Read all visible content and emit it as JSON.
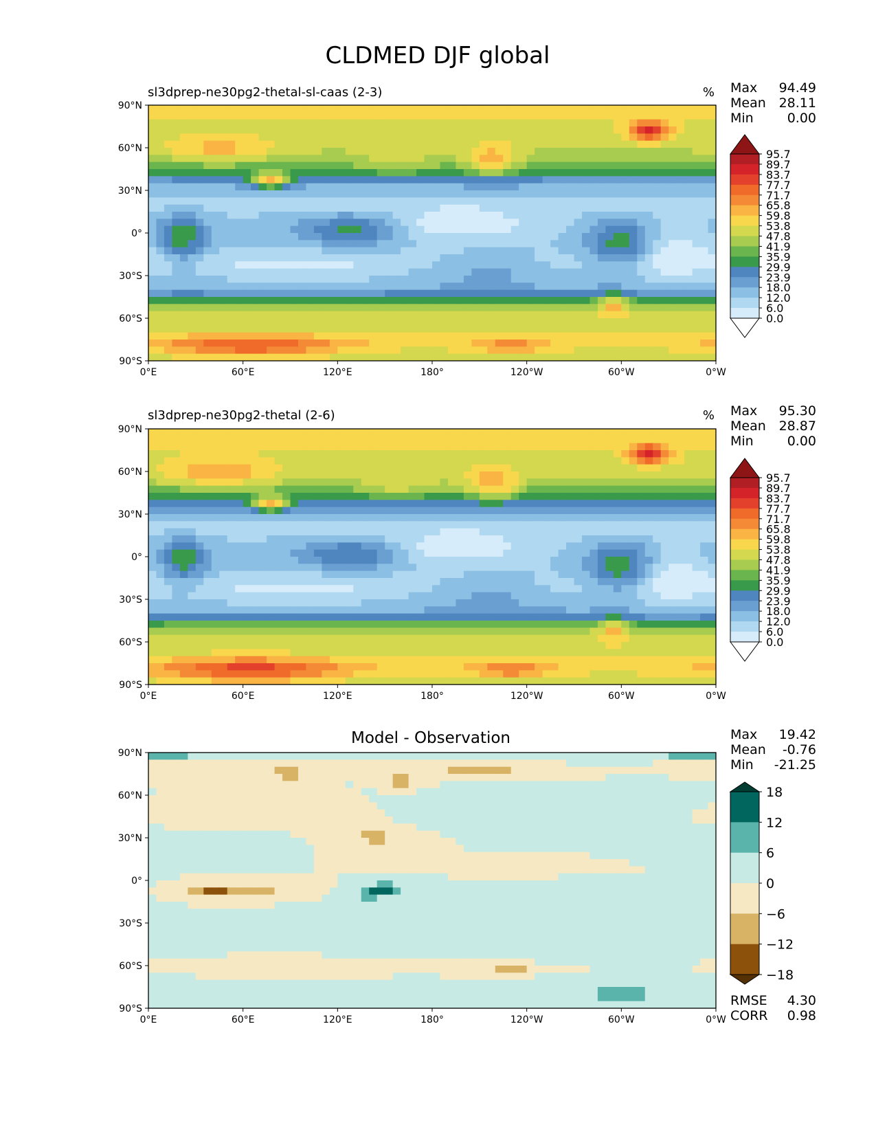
{
  "title": "CLDMED DJF global",
  "panels": [
    {
      "id": "test",
      "subtitle": "sl3dprep-ne30pg2-thetal-sl-caas (2-3)",
      "units": "%",
      "stats": [
        {
          "label": "Max",
          "value": "94.49"
        },
        {
          "label": "Mean",
          "value": "28.11"
        },
        {
          "label": "Min",
          "value": "0.00"
        }
      ],
      "colorbar": "full"
    },
    {
      "id": "ref",
      "subtitle": "sl3dprep-ne30pg2-thetal (2-6)",
      "units": "%",
      "stats": [
        {
          "label": "Max",
          "value": "95.30"
        },
        {
          "label": "Mean",
          "value": "28.87"
        },
        {
          "label": "Min",
          "value": "0.00"
        }
      ],
      "colorbar": "full"
    },
    {
      "id": "diff",
      "center_title": "Model - Observation",
      "stats": [
        {
          "label": "Max",
          "value": "19.42"
        },
        {
          "label": "Mean",
          "value": "-0.76"
        },
        {
          "label": "Min",
          "value": "-21.25"
        }
      ],
      "bottom_stats": [
        {
          "label": "RMSE",
          "value": "4.30"
        },
        {
          "label": "CORR",
          "value": "0.98"
        }
      ],
      "colorbar": "diff"
    }
  ],
  "chart_data": {
    "type": "heatmap",
    "projection": "cylindrical lon-lat",
    "x_ticks": [
      "0°E",
      "60°E",
      "120°E",
      "180°",
      "120°W",
      "60°W",
      "0°W"
    ],
    "y_ticks": [
      "90°N",
      "60°N",
      "30°N",
      "0°",
      "30°S",
      "60°S",
      "90°S"
    ],
    "xlim": [
      0,
      360
    ],
    "ylim": [
      -90,
      90
    ],
    "colorbars": {
      "full": {
        "levels": [
          "95.7",
          "89.7",
          "83.7",
          "77.7",
          "71.7",
          "65.8",
          "59.8",
          "53.8",
          "47.8",
          "41.9",
          "35.9",
          "29.9",
          "23.9",
          "18.0",
          "12.0",
          "6.0",
          "0.0"
        ],
        "colors": [
          "#8e1515",
          "#b11f24",
          "#d4242a",
          "#e3412b",
          "#f06a2a",
          "#f48a36",
          "#f9b443",
          "#f8d74c",
          "#d3d84e",
          "#a7cc4f",
          "#6bb54e",
          "#3a9a4c",
          "#4f86c0",
          "#6a9fd1",
          "#8cbfe4",
          "#b0d8f1",
          "#d7ecfa",
          "#ffffff"
        ],
        "extend": "both"
      },
      "diff": {
        "levels": [
          "18",
          "12",
          "6",
          "0",
          "−6",
          "−12",
          "−18"
        ],
        "colors": [
          "#013d33",
          "#01665e",
          "#5ab4ac",
          "#c7eae5",
          "#f6e8c3",
          "#d8b365",
          "#8c510a",
          "#543005"
        ],
        "extend": "both"
      }
    },
    "fields": {
      "test": {
        "zonal_profile": [
          [
            90,
            62
          ],
          [
            80,
            60
          ],
          [
            70,
            57
          ],
          [
            60,
            55
          ],
          [
            50,
            47
          ],
          [
            40,
            33
          ],
          [
            30,
            20
          ],
          [
            20,
            14
          ],
          [
            10,
            19
          ],
          [
            0,
            20
          ],
          [
            -10,
            18
          ],
          [
            -20,
            14
          ],
          [
            -30,
            18
          ],
          [
            -40,
            24
          ],
          [
            -45,
            36
          ],
          [
            -50,
            46
          ],
          [
            -55,
            56
          ],
          [
            -60,
            58
          ],
          [
            -70,
            56
          ],
          [
            -75,
            64
          ],
          [
            -80,
            60
          ],
          [
            -90,
            54
          ]
        ],
        "features": [
          {
            "lon": 45,
            "lat": 58,
            "sx": 26,
            "sy": 7,
            "amp": 14
          },
          {
            "lon": 78,
            "lat": 37,
            "sx": 9,
            "sy": 4,
            "amp": 38
          },
          {
            "lon": 158,
            "lat": 48,
            "sx": 20,
            "sy": 6,
            "amp": 10
          },
          {
            "lon": 218,
            "lat": 50,
            "sx": 12,
            "sy": 8,
            "amp": 20
          },
          {
            "lon": 318,
            "lat": 72,
            "sx": 9,
            "sy": 5,
            "amp": 33
          },
          {
            "lon": 22,
            "lat": -3,
            "sx": 10,
            "sy": 12,
            "amp": 22
          },
          {
            "lon": 130,
            "lat": 2,
            "sx": 22,
            "sy": 8,
            "amp": 20
          },
          {
            "lon": 300,
            "lat": -8,
            "sx": 14,
            "sy": 12,
            "amp": 23
          },
          {
            "lon": 295,
            "lat": -50,
            "sx": 6,
            "sy": 6,
            "amp": 18
          },
          {
            "lon": 65,
            "lat": -80,
            "sx": 40,
            "sy": 6,
            "amp": 22
          },
          {
            "lon": 230,
            "lat": -80,
            "sx": 18,
            "sy": 4,
            "amp": 14
          },
          {
            "lon": 195,
            "lat": 5,
            "sx": 40,
            "sy": 8,
            "amp": -12
          },
          {
            "lon": 330,
            "lat": -15,
            "sx": 20,
            "sy": 15,
            "amp": -10
          },
          {
            "lon": 215,
            "lat": -25,
            "sx": 30,
            "sy": 8,
            "amp": 8
          },
          {
            "lon": 95,
            "lat": -25,
            "sx": 40,
            "sy": 8,
            "amp": -5
          }
        ]
      },
      "ref": {
        "zonal_profile": [
          [
            90,
            63
          ],
          [
            80,
            61
          ],
          [
            70,
            58
          ],
          [
            60,
            56
          ],
          [
            50,
            48
          ],
          [
            40,
            34
          ],
          [
            30,
            21
          ],
          [
            20,
            14
          ],
          [
            10,
            19
          ],
          [
            0,
            21
          ],
          [
            -10,
            18
          ],
          [
            -20,
            14
          ],
          [
            -30,
            18
          ],
          [
            -40,
            25
          ],
          [
            -45,
            37
          ],
          [
            -50,
            47
          ],
          [
            -55,
            57
          ],
          [
            -60,
            59
          ],
          [
            -70,
            57
          ],
          [
            -75,
            65
          ],
          [
            -80,
            61
          ],
          [
            -90,
            55
          ]
        ],
        "features": [
          {
            "lon": 45,
            "lat": 58,
            "sx": 26,
            "sy": 7,
            "amp": 15
          },
          {
            "lon": 78,
            "lat": 37,
            "sx": 9,
            "sy": 4,
            "amp": 36
          },
          {
            "lon": 158,
            "lat": 48,
            "sx": 20,
            "sy": 6,
            "amp": 10
          },
          {
            "lon": 218,
            "lat": 50,
            "sx": 12,
            "sy": 8,
            "amp": 22
          },
          {
            "lon": 318,
            "lat": 72,
            "sx": 9,
            "sy": 5,
            "amp": 33
          },
          {
            "lon": 22,
            "lat": -3,
            "sx": 10,
            "sy": 12,
            "amp": 20
          },
          {
            "lon": 130,
            "lat": 2,
            "sx": 22,
            "sy": 8,
            "amp": 18
          },
          {
            "lon": 300,
            "lat": -8,
            "sx": 14,
            "sy": 12,
            "amp": 24
          },
          {
            "lon": 295,
            "lat": -50,
            "sx": 6,
            "sy": 6,
            "amp": 18
          },
          {
            "lon": 65,
            "lat": -80,
            "sx": 40,
            "sy": 6,
            "amp": 24
          },
          {
            "lon": 230,
            "lat": -80,
            "sx": 18,
            "sy": 4,
            "amp": 16
          },
          {
            "lon": 195,
            "lat": 5,
            "sx": 40,
            "sy": 8,
            "amp": -12
          },
          {
            "lon": 330,
            "lat": -15,
            "sx": 20,
            "sy": 15,
            "amp": -10
          },
          {
            "lon": 215,
            "lat": -25,
            "sx": 30,
            "sy": 8,
            "amp": 8
          },
          {
            "lon": 95,
            "lat": -25,
            "sx": 40,
            "sy": 8,
            "amp": -5
          }
        ]
      },
      "diff": {
        "zonal_profile": [
          [
            90,
            0
          ],
          [
            0,
            0
          ],
          [
            -90,
            0
          ]
        ],
        "features": [
          {
            "lon": 40,
            "lat": -8,
            "sx": 12,
            "sy": 3,
            "amp": -13
          },
          {
            "lon": 70,
            "lat": -6,
            "sx": 14,
            "sy": 3,
            "amp": -9
          },
          {
            "lon": 150,
            "lat": -6,
            "sx": 8,
            "sy": 3,
            "amp": 13
          },
          {
            "lon": 140,
            "lat": -10,
            "sx": 8,
            "sy": 3,
            "amp": 9
          },
          {
            "lon": 300,
            "lat": -80,
            "sx": 12,
            "sy": 3,
            "amp": 16
          },
          {
            "lon": 210,
            "lat": 77,
            "sx": 20,
            "sy": 3,
            "amp": -10
          },
          {
            "lon": 90,
            "lat": 75,
            "sx": 8,
            "sy": 4,
            "amp": -9
          },
          {
            "lon": 160,
            "lat": 70,
            "sx": 8,
            "sy": 3,
            "amp": -9
          },
          {
            "lon": 250,
            "lat": 10,
            "sx": 30,
            "sy": 3,
            "amp": -7
          },
          {
            "lon": 145,
            "lat": 30,
            "sx": 20,
            "sy": 6,
            "amp": -7
          },
          {
            "lon": 40,
            "lat": 80,
            "sx": 30,
            "sy": 3,
            "amp": -7
          },
          {
            "lon": 320,
            "lat": 60,
            "sx": 10,
            "sy": 4,
            "amp": 7
          },
          {
            "lon": 0,
            "lat": 88,
            "sx": 60,
            "sy": 2,
            "amp": 7
          },
          {
            "lon": 100,
            "lat": -60,
            "sx": 40,
            "sy": 2,
            "amp": -7
          },
          {
            "lon": 230,
            "lat": -62,
            "sx": 20,
            "sy": 2,
            "amp": -7
          },
          {
            "lon": 330,
            "lat": 20,
            "sx": 20,
            "sy": 6,
            "amp": 5
          },
          {
            "lon": 270,
            "lat": -30,
            "sx": 40,
            "sy": 15,
            "amp": 3
          },
          {
            "lon": 180,
            "lat": -30,
            "sx": 30,
            "sy": 8,
            "amp": 4
          },
          {
            "lon": 60,
            "lat": 25,
            "sx": 20,
            "sy": 5,
            "amp": 6
          },
          {
            "lon": 100,
            "lat": 45,
            "sx": 30,
            "sy": 6,
            "amp": -4
          },
          {
            "lon": 200,
            "lat": 45,
            "sx": 30,
            "sy": 8,
            "amp": 4
          }
        ]
      }
    }
  }
}
